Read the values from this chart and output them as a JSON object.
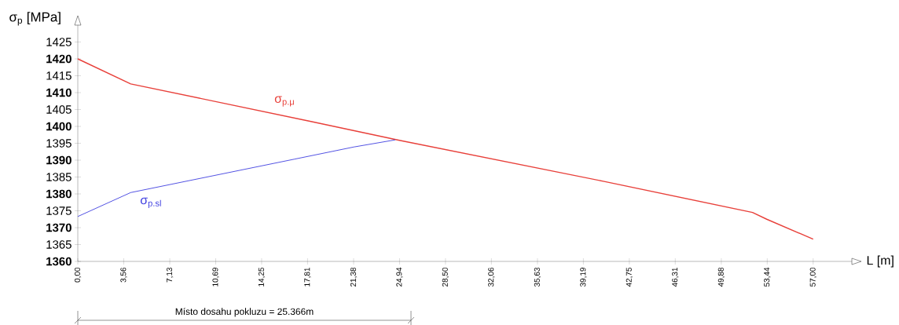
{
  "chart_data": {
    "type": "line",
    "xlabel": "L [m]",
    "ylabel": "σ$_{p}$ [MPa]",
    "xlim": [
      0,
      60
    ],
    "ylim": [
      1360,
      1430
    ],
    "xticks": [
      {
        "value": 0,
        "label": "0,00"
      },
      {
        "value": 3.56,
        "label": "3,56"
      },
      {
        "value": 7.13,
        "label": "7,13"
      },
      {
        "value": 10.69,
        "label": "10,69"
      },
      {
        "value": 14.25,
        "label": "14,25"
      },
      {
        "value": 17.81,
        "label": "17,81"
      },
      {
        "value": 21.38,
        "label": "21,38"
      },
      {
        "value": 24.94,
        "label": "24,94"
      },
      {
        "value": 28.5,
        "label": "28,50"
      },
      {
        "value": 32.06,
        "label": "32,06"
      },
      {
        "value": 35.63,
        "label": "35,63"
      },
      {
        "value": 39.19,
        "label": "39,19"
      },
      {
        "value": 42.75,
        "label": "42,75"
      },
      {
        "value": 46.31,
        "label": "46,31"
      },
      {
        "value": 49.88,
        "label": "49,88"
      },
      {
        "value": 53.44,
        "label": "53,44"
      },
      {
        "value": 57,
        "label": "57,00"
      }
    ],
    "yticks": [
      1360,
      1365,
      1370,
      1375,
      1380,
      1385,
      1390,
      1395,
      1400,
      1405,
      1410,
      1415,
      1420,
      1425
    ],
    "grid": false,
    "marker": "none",
    "line_style": "solid",
    "series": [
      {
        "name": "σ$_{p.μ}$",
        "color": "#e8403a",
        "x": [
          0,
          4.1,
          18,
          25,
          40.8,
          52.3,
          53.4,
          57
        ],
        "values": [
          1420,
          1412.6,
          1401.5,
          1395.8,
          1383.7,
          1374.5,
          1372.5,
          1366.6
        ]
      },
      {
        "name": "σ$_{p.sl}$",
        "color": "#4040e0",
        "x": [
          0,
          4.1,
          16.8,
          21.4,
          24.6
        ],
        "values": [
          1373.3,
          1380.4,
          1390.3,
          1393.9,
          1396
        ]
      }
    ],
    "annotations": [
      "Místo dosahu pokluzu = 25.366m"
    ]
  }
}
